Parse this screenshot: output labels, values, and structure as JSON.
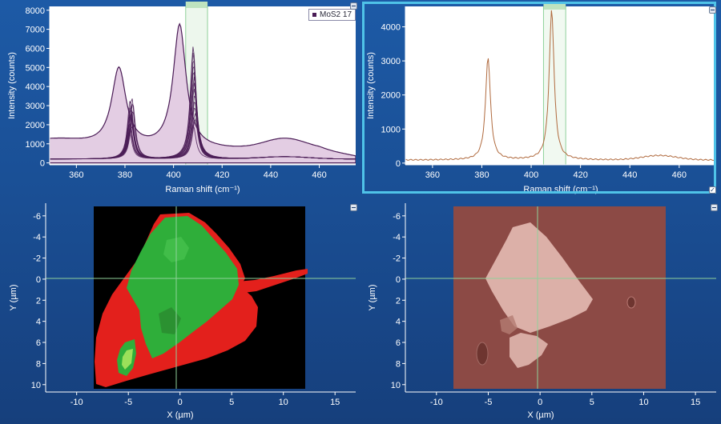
{
  "colors": {
    "background": "#1d5aa6",
    "selected_panel_border": "#4fc3e8",
    "spectrum_dark": "#4a1c56",
    "spectrum_fill": "#e3cde3",
    "single_spectrum": "#b06a3e",
    "cursor_line": "#8fd19a",
    "map_red": "#e3201c",
    "map_green": "#2fae3a",
    "map_bright_green": "#9be05a",
    "optical_background": "#8c4a45",
    "optical_flake": "#dcb0a8"
  },
  "spectrum_left": {
    "legend_label": "MoS2 17",
    "xlabel": "Raman shift (cm⁻¹)",
    "ylabel": "Intensity (counts)",
    "x_ticks": [
      "360",
      "380",
      "400",
      "420",
      "440",
      "460"
    ],
    "y_ticks": [
      "0",
      "1000",
      "2000",
      "3000",
      "4000",
      "5000",
      "6000",
      "7000",
      "8000"
    ],
    "minimize_icon": "minimize-icon"
  },
  "spectrum_right": {
    "xlabel": "Raman shift (cm⁻¹)",
    "ylabel": "Intensity (counts)",
    "x_ticks": [
      "360",
      "380",
      "400",
      "420",
      "440",
      "460"
    ],
    "y_ticks": [
      "0",
      "1000",
      "2000",
      "3000",
      "4000"
    ],
    "minimize_icon": "minimize-icon",
    "check_icon": "checkbox-checked-icon"
  },
  "map_left": {
    "xlabel": "X (µm)",
    "ylabel": "Y (µm)",
    "x_ticks": [
      "-10",
      "-5",
      "0",
      "5",
      "10",
      "15"
    ],
    "y_ticks": [
      "-6",
      "-4",
      "-2",
      "0",
      "2",
      "4",
      "6",
      "8",
      "10"
    ]
  },
  "map_right": {
    "xlabel": "X (µm)",
    "ylabel": "Y (µm)",
    "x_ticks": [
      "-10",
      "-5",
      "0",
      "5",
      "10",
      "15"
    ],
    "y_ticks": [
      "-6",
      "-4",
      "-2",
      "0",
      "2",
      "4",
      "6",
      "8",
      "10"
    ]
  },
  "chart_data": [
    {
      "type": "line",
      "xlabel": "Raman shift (cm⁻¹)",
      "ylabel": "Intensity (counts)",
      "xlim": [
        349,
        475
      ],
      "ylim": [
        -100,
        8200
      ],
      "series": [
        {
          "name": "MoS2 17",
          "peaks": [
            {
              "x": 377.5,
              "y": 4850
            },
            {
              "x": 402.5,
              "y": 7200
            },
            {
              "x": 446,
              "y": 1250
            }
          ]
        },
        {
          "peaks": [
            {
              "x": 382.5,
              "y": 3200
            },
            {
              "x": 408.5,
              "y": 5900
            }
          ]
        }
      ],
      "highlight_range": [
        405,
        414
      ]
    },
    {
      "type": "line",
      "xlabel": "Raman shift (cm⁻¹)",
      "ylabel": "Intensity (counts)",
      "xlim": [
        349,
        475
      ],
      "ylim": [
        -50,
        4600
      ],
      "peaks": [
        {
          "x": 382.5,
          "y": 3100
        },
        {
          "x": 408.3,
          "y": 4500
        },
        {
          "x": 452,
          "y": 220
        }
      ],
      "highlight_range": [
        405,
        414
      ]
    },
    {
      "type": "heatmap",
      "xlabel": "X (µm)",
      "ylabel": "Y (µm)",
      "xlim": [
        -13,
        17
      ],
      "ylim": [
        -7.2,
        10.7
      ],
      "cursor": {
        "x": 0,
        "y": 0
      }
    },
    {
      "type": "heatmap",
      "xlabel": "X (µm)",
      "ylabel": "Y (µm)",
      "xlim": [
        -13,
        17
      ],
      "ylim": [
        -7.2,
        10.7
      ],
      "cursor": {
        "x": 0,
        "y": 0
      }
    }
  ]
}
